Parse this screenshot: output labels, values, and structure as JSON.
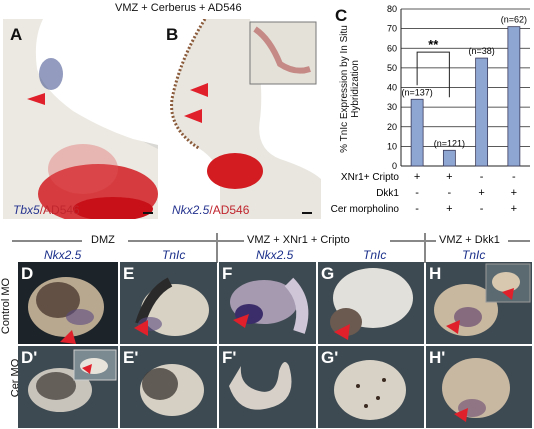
{
  "top_title": "VMZ + Cerberus + AD546",
  "panels_top": {
    "A": {
      "label": "A",
      "gene": "Tbx5",
      "sep": "/",
      "marker": "AD546"
    },
    "B": {
      "label": "B",
      "gene": "Nkx2.5",
      "sep": "/",
      "marker": "AD546"
    }
  },
  "chart_data": {
    "type": "bar",
    "label": "C",
    "ylabel": "% TnIc Expression by In Situ Hybridization",
    "ylim": [
      0,
      80
    ],
    "yticks": [
      "0",
      "10",
      "20",
      "30",
      "40",
      "50",
      "60",
      "70",
      "80"
    ],
    "categories": [
      "1",
      "2",
      "3",
      "4"
    ],
    "values": [
      34,
      8,
      55,
      71
    ],
    "counts": [
      "(n=137)",
      "(n=121)",
      "(n=38)",
      "(n=62)"
    ],
    "significance": "**",
    "rows": [
      {
        "name": "XNr1+ Cripto",
        "marks": [
          "+",
          "+",
          "-",
          "-"
        ]
      },
      {
        "name": "Dkk1",
        "marks": [
          "-",
          "-",
          "+",
          "+"
        ]
      },
      {
        "name": "Cer morpholino",
        "marks": [
          "-",
          "+",
          "-",
          "+"
        ]
      }
    ],
    "colors": {
      "bar": "#8ea6d2",
      "bar_border": "#3a3a5a"
    }
  },
  "bottom": {
    "groups": [
      "DMZ",
      "VMZ + XNr1 + Cripto",
      "VMZ + Dkk1"
    ],
    "genes": [
      "Nkx2.5",
      "TnIc",
      "Nkx2.5",
      "TnIc",
      "TnIc"
    ],
    "row_labels": [
      "Control MO",
      "Cer MO"
    ],
    "panel_labels_top": [
      "D",
      "E",
      "F",
      "G",
      "H"
    ],
    "panel_labels_bottom": [
      "D'",
      "E'",
      "F'",
      "G'",
      "H'"
    ]
  }
}
